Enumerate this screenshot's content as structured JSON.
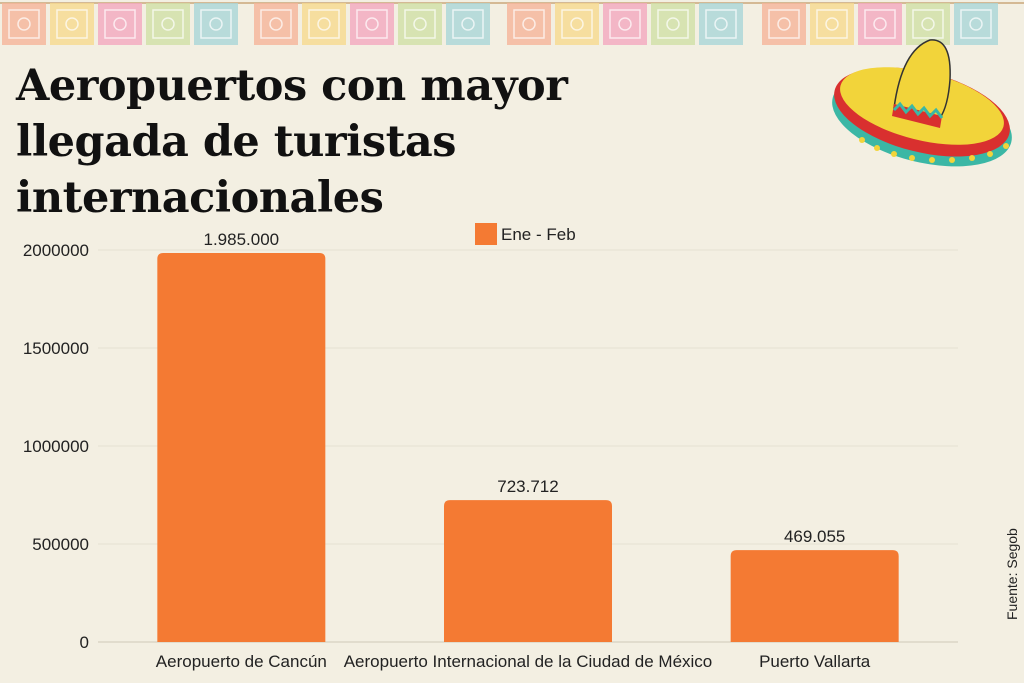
{
  "title": "Aeropuertos con mayor llegada de turistas internacionales",
  "source": "Fuente: Segob",
  "colors": {
    "bar": "#f47a33",
    "background": "#f3efe2",
    "grid": "#e6e1d2",
    "text": "#222222"
  },
  "chart_data": {
    "type": "bar",
    "categories": [
      "Aeropuerto de Cancún",
      "Aeropuerto Internacional de la Ciudad de México",
      "Puerto Vallarta"
    ],
    "series": [
      {
        "name": "Ene - Feb",
        "values": [
          1985000,
          723712,
          469055
        ],
        "data_labels": [
          "1.985.000",
          "723.712",
          "469.055"
        ]
      }
    ],
    "yticks": [
      0,
      500000,
      1000000,
      1500000,
      2000000
    ],
    "ylim": [
      0,
      2000000
    ],
    "legend": "top-center",
    "grid": true
  }
}
